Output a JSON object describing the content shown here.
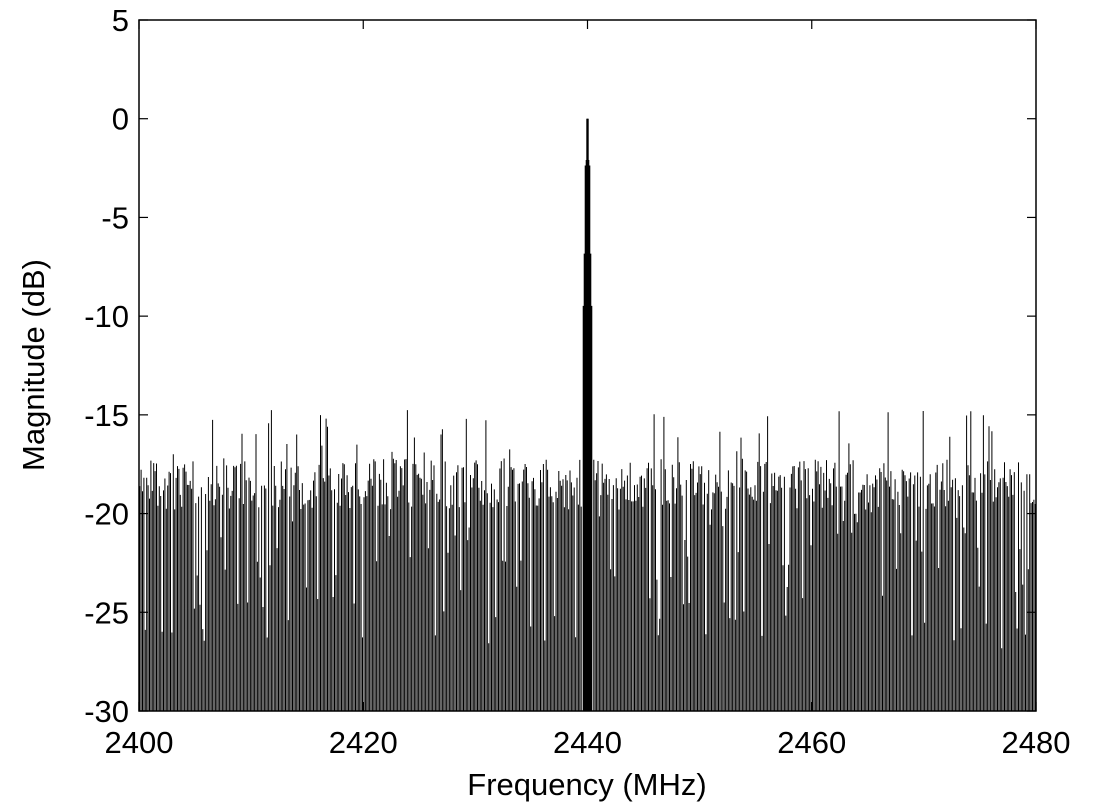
{
  "chart_data": {
    "type": "line",
    "title": "",
    "xlabel": "Frequency (MHz)",
    "ylabel": "Magnitude (dB)",
    "xlim": [
      2400,
      2480
    ],
    "ylim": [
      -30,
      5
    ],
    "xticks": [
      2400,
      2420,
      2440,
      2460,
      2480
    ],
    "yticks": [
      5,
      0,
      -5,
      -10,
      -15,
      -20,
      -25,
      -30
    ],
    "grid": false,
    "legend": "none",
    "line_color": "#000000",
    "series": [
      {
        "description_peak": "narrow carrier peak at 0 dB",
        "peak_x": 2440,
        "peak_y": 0,
        "peak_width_mhz": 0.8,
        "noise_floor_min": -30,
        "noise_floor_typical_top": -18.5,
        "noise_floor_max": -14.7,
        "spectral_line_spacing_mhz": 0.125
      }
    ]
  }
}
